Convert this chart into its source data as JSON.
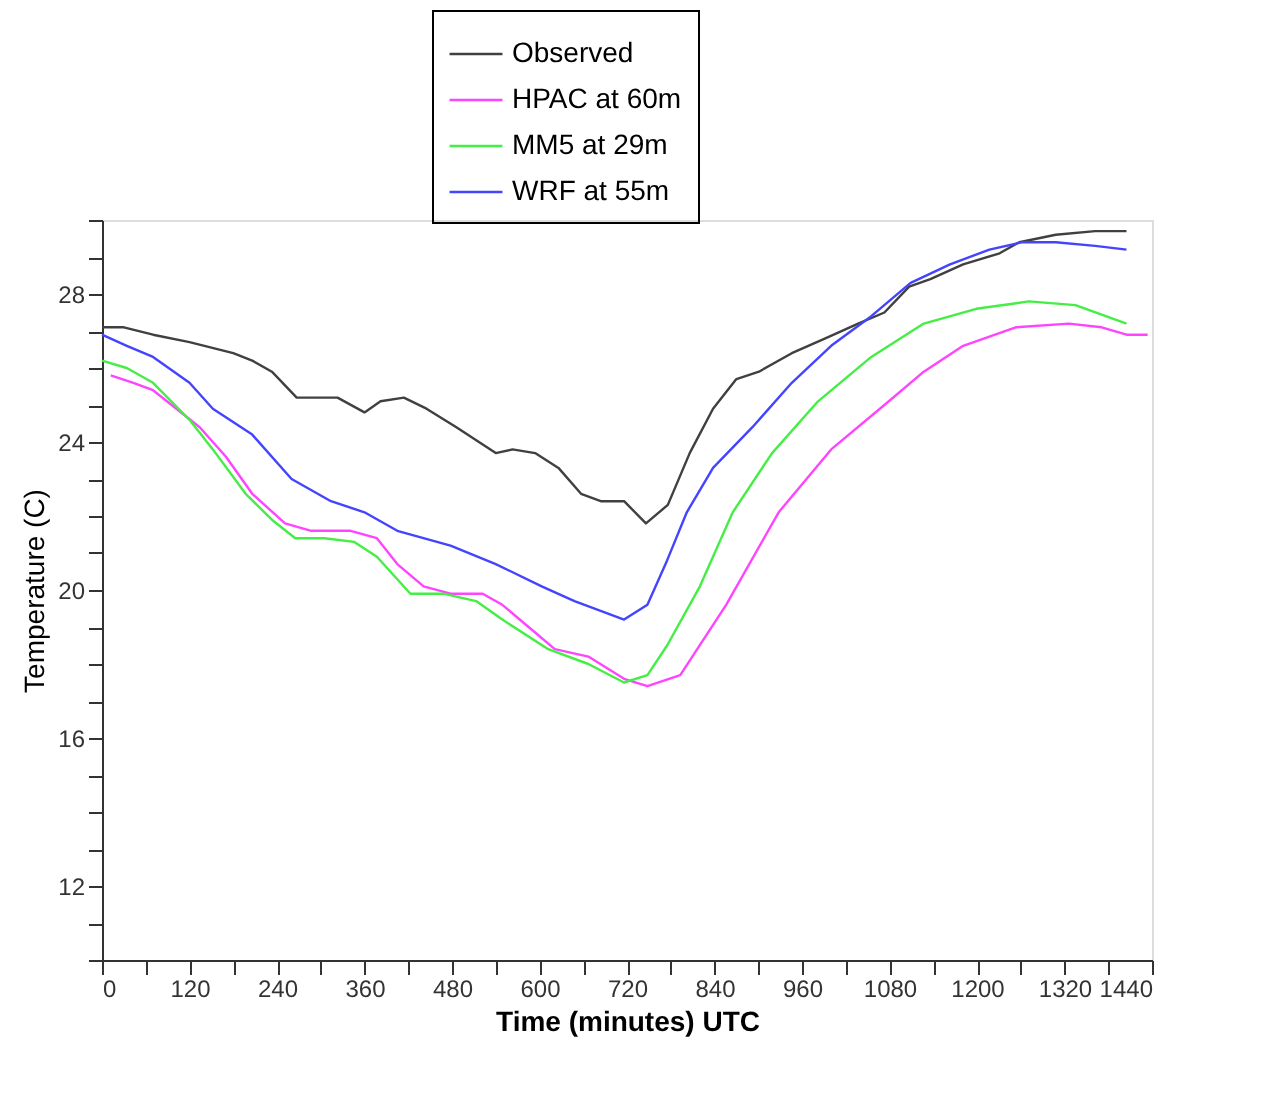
{
  "chart_data": {
    "type": "line",
    "xlabel": "Time (minutes) UTC",
    "ylabel": "Temperature (C)",
    "xlim": [
      0,
      1440
    ],
    "ylim": [
      10,
      30
    ],
    "xticks": [
      0,
      {
        "value": 60,
        "label": null
      },
      120,
      {
        "value": 180,
        "label": null
      },
      240,
      {
        "value": 300,
        "label": null
      },
      360,
      {
        "value": 420,
        "label": null
      },
      480,
      {
        "value": 540,
        "label": null
      },
      600,
      {
        "value": 660,
        "label": null
      },
      720,
      {
        "value": 780,
        "label": null
      },
      840,
      {
        "value": 900,
        "label": null
      },
      960,
      {
        "value": 1020,
        "label": null
      },
      1080,
      {
        "value": 1140,
        "label": null
      },
      1200,
      {
        "value": 1260,
        "label": null
      },
      1320,
      {
        "value": 1380,
        "label": null
      },
      1440
    ],
    "yticks": [
      {
        "value": 10,
        "label": null
      },
      {
        "value": 11,
        "label": null
      },
      12,
      {
        "value": 13,
        "label": null
      },
      {
        "value": 14,
        "label": null
      },
      {
        "value": 15,
        "label": null
      },
      16,
      {
        "value": 17,
        "label": null
      },
      {
        "value": 18,
        "label": null
      },
      {
        "value": 19,
        "label": null
      },
      20,
      {
        "value": 21,
        "label": null
      },
      {
        "value": 22,
        "label": null
      },
      {
        "value": 23,
        "label": null
      },
      24,
      {
        "value": 25,
        "label": null
      },
      {
        "value": 26,
        "label": null
      },
      {
        "value": 27,
        "label": null
      },
      28,
      {
        "value": 29,
        "label": null
      },
      {
        "value": 30,
        "label": null
      }
    ],
    "grid": false,
    "legend": "top",
    "marker": "none",
    "line_style": "solid",
    "series": [
      {
        "name": "Observed",
        "color": "#404040",
        "x": [
          0,
          30,
          70,
          120,
          180,
          206,
          233,
          267,
          323,
          360,
          382,
          414,
          445,
          486,
          540,
          563,
          594,
          626,
          657,
          684,
          716,
          746,
          776,
          806,
          838,
          870,
          901,
          946,
          992,
          1037,
          1073,
          1107,
          1136,
          1181,
          1231,
          1258,
          1308,
          1362,
          1405
        ],
        "values": [
          27.1,
          27.1,
          26.9,
          26.7,
          26.4,
          26.2,
          25.9,
          25.2,
          25.2,
          24.8,
          25.1,
          25.2,
          24.9,
          24.4,
          23.7,
          23.8,
          23.7,
          23.3,
          22.6,
          22.4,
          22.4,
          21.8,
          22.3,
          23.7,
          24.9,
          25.7,
          25.9,
          26.4,
          26.8,
          27.2,
          27.5,
          28.2,
          28.4,
          28.8,
          29.1,
          29.4,
          29.6,
          29.7,
          29.7
        ]
      },
      {
        "name": "HPAC at 60m",
        "color": "#ff44ff",
        "x": [
          12,
          43,
          70,
          134,
          170,
          206,
          251,
          287,
          341,
          377,
          405,
          441,
          478,
          522,
          549,
          585,
          621,
          667,
          716,
          748,
          793,
          856,
          928,
          1000,
          1073,
          1127,
          1181,
          1253,
          1326,
          1371,
          1405,
          1434
        ],
        "values": [
          25.8,
          25.6,
          25.4,
          24.4,
          23.6,
          22.6,
          21.8,
          21.6,
          21.6,
          21.4,
          20.7,
          20.1,
          19.9,
          19.9,
          19.6,
          19.0,
          18.4,
          18.2,
          17.6,
          17.4,
          17.7,
          19.6,
          22.1,
          23.8,
          25.0,
          25.9,
          26.6,
          27.1,
          27.2,
          27.1,
          26.9,
          26.9
        ]
      },
      {
        "name": "MM5 at 29m",
        "color": "#44ee44",
        "x": [
          0,
          34,
          70,
          120,
          152,
          197,
          233,
          265,
          305,
          346,
          377,
          423,
          468,
          513,
          549,
          612,
          667,
          716,
          748,
          775,
          820,
          865,
          919,
          982,
          1055,
          1127,
          1199,
          1271,
          1335,
          1405
        ],
        "values": [
          26.2,
          26.0,
          25.6,
          24.6,
          23.8,
          22.6,
          21.9,
          21.4,
          21.4,
          21.3,
          20.9,
          19.9,
          19.9,
          19.7,
          19.2,
          18.4,
          18.0,
          17.5,
          17.7,
          18.5,
          20.1,
          22.1,
          23.7,
          25.1,
          26.3,
          27.2,
          27.6,
          27.8,
          27.7,
          27.2
        ]
      },
      {
        "name": "WRF at 55m",
        "color": "#4444ff",
        "x": [
          0,
          34,
          70,
          120,
          152,
          206,
          260,
          314,
          360,
          405,
          478,
          540,
          603,
          648,
          716,
          748,
          775,
          802,
          838,
          892,
          946,
          1000,
          1055,
          1109,
          1163,
          1217,
          1262,
          1308,
          1362,
          1405
        ],
        "values": [
          26.9,
          26.6,
          26.3,
          25.6,
          24.9,
          24.2,
          23.0,
          22.4,
          22.1,
          21.6,
          21.2,
          20.7,
          20.1,
          19.7,
          19.2,
          19.6,
          20.8,
          22.1,
          23.3,
          24.4,
          25.6,
          26.6,
          27.4,
          28.3,
          28.8,
          29.2,
          29.4,
          29.4,
          29.3,
          29.2
        ]
      }
    ]
  }
}
